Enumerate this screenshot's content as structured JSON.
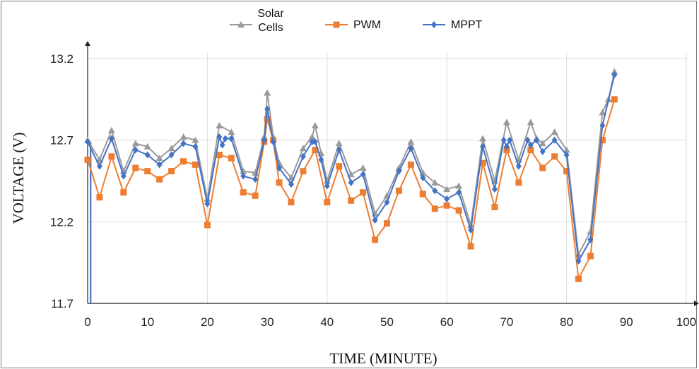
{
  "chart_data": {
    "type": "line",
    "xlabel": "TIME (MINUTE)",
    "ylabel": "VOLTAGE (V)",
    "xlim": [
      0,
      100
    ],
    "ylim": [
      11.7,
      13.2
    ],
    "xticks": [
      "0",
      "10",
      "20",
      "30",
      "40",
      "50",
      "60",
      "70",
      "80",
      "90",
      "100"
    ],
    "yticks": [
      "11.7",
      "12.2",
      "12.7",
      "13.2"
    ],
    "grid": true,
    "legend_position": "top",
    "series": [
      {
        "name": "Solar Cells",
        "color": "#9a9a9a",
        "marker": "triangle",
        "points": [
          [
            0,
            12.7
          ],
          [
            2,
            12.58
          ],
          [
            4,
            12.76
          ],
          [
            6,
            12.51
          ],
          [
            8,
            12.68
          ],
          [
            10,
            12.66
          ],
          [
            12,
            12.59
          ],
          [
            14,
            12.65
          ],
          [
            16,
            12.72
          ],
          [
            18,
            12.7
          ],
          [
            20,
            12.34
          ],
          [
            22,
            12.79
          ],
          [
            24,
            12.75
          ],
          [
            26,
            12.51
          ],
          [
            28,
            12.5
          ],
          [
            29.5,
            12.72
          ],
          [
            30,
            12.99
          ],
          [
            31,
            12.72
          ],
          [
            32,
            12.56
          ],
          [
            34,
            12.47
          ],
          [
            36,
            12.65
          ],
          [
            37.5,
            12.72
          ],
          [
            38,
            12.79
          ],
          [
            39,
            12.62
          ],
          [
            40,
            12.45
          ],
          [
            42,
            12.68
          ],
          [
            44,
            12.49
          ],
          [
            46,
            12.53
          ],
          [
            48,
            12.25
          ],
          [
            50,
            12.36
          ],
          [
            52,
            12.53
          ],
          [
            54,
            12.69
          ],
          [
            56,
            12.5
          ],
          [
            58,
            12.44
          ],
          [
            60,
            12.4
          ],
          [
            62,
            12.42
          ],
          [
            64,
            12.18
          ],
          [
            66,
            12.71
          ],
          [
            68,
            12.45
          ],
          [
            70,
            12.81
          ],
          [
            72,
            12.58
          ],
          [
            74,
            12.81
          ],
          [
            75,
            12.71
          ],
          [
            76,
            12.68
          ],
          [
            78,
            12.75
          ],
          [
            80,
            12.64
          ],
          [
            82,
            12.0
          ],
          [
            84,
            12.14
          ],
          [
            86,
            12.87
          ],
          [
            87,
            12.95
          ],
          [
            88,
            13.12
          ]
        ]
      },
      {
        "name": "PWM",
        "color": "#ed7d31",
        "marker": "square",
        "points": [
          [
            0,
            12.58
          ],
          [
            2,
            12.35
          ],
          [
            4,
            12.6
          ],
          [
            6,
            12.38
          ],
          [
            8,
            12.53
          ],
          [
            10,
            12.51
          ],
          [
            12,
            12.46
          ],
          [
            14,
            12.51
          ],
          [
            16,
            12.57
          ],
          [
            18,
            12.55
          ],
          [
            20,
            12.18
          ],
          [
            22,
            12.61
          ],
          [
            24,
            12.59
          ],
          [
            26,
            12.38
          ],
          [
            28,
            12.36
          ],
          [
            29.5,
            12.69
          ],
          [
            30,
            12.83
          ],
          [
            31,
            12.7
          ],
          [
            32,
            12.44
          ],
          [
            34,
            12.32
          ],
          [
            36,
            12.51
          ],
          [
            38,
            12.64
          ],
          [
            40,
            12.32
          ],
          [
            42,
            12.54
          ],
          [
            44,
            12.33
          ],
          [
            46,
            12.38
          ],
          [
            48,
            12.09
          ],
          [
            50,
            12.19
          ],
          [
            52,
            12.39
          ],
          [
            54,
            12.55
          ],
          [
            56,
            12.37
          ],
          [
            58,
            12.28
          ],
          [
            60,
            12.3
          ],
          [
            62,
            12.27
          ],
          [
            64,
            12.05
          ],
          [
            66,
            12.56
          ],
          [
            68,
            12.29
          ],
          [
            70,
            12.64
          ],
          [
            72,
            12.44
          ],
          [
            74,
            12.64
          ],
          [
            76,
            12.53
          ],
          [
            78,
            12.6
          ],
          [
            80,
            12.51
          ],
          [
            82,
            11.85
          ],
          [
            84,
            11.99
          ],
          [
            86,
            12.7
          ],
          [
            88,
            12.95
          ]
        ]
      },
      {
        "name": "MPPT",
        "color": "#4472c4",
        "marker": "diamond",
        "points": [
          [
            0,
            12.69
          ],
          [
            2,
            12.54
          ],
          [
            4,
            12.71
          ],
          [
            6,
            12.48
          ],
          [
            8,
            12.64
          ],
          [
            10,
            12.61
          ],
          [
            12,
            12.55
          ],
          [
            14,
            12.61
          ],
          [
            16,
            12.68
          ],
          [
            18,
            12.66
          ],
          [
            20,
            12.31
          ],
          [
            22,
            12.72
          ],
          [
            22.5,
            12.67
          ],
          [
            23,
            12.71
          ],
          [
            24,
            12.71
          ],
          [
            26,
            12.48
          ],
          [
            28,
            12.46
          ],
          [
            29.5,
            12.7
          ],
          [
            30,
            12.89
          ],
          [
            31,
            12.69
          ],
          [
            32,
            12.53
          ],
          [
            34,
            12.43
          ],
          [
            36,
            12.6
          ],
          [
            37.5,
            12.69
          ],
          [
            38,
            12.69
          ],
          [
            39,
            12.58
          ],
          [
            40,
            12.42
          ],
          [
            42,
            12.64
          ],
          [
            44,
            12.44
          ],
          [
            46,
            12.49
          ],
          [
            48,
            12.21
          ],
          [
            50,
            12.32
          ],
          [
            52,
            12.51
          ],
          [
            54,
            12.65
          ],
          [
            56,
            12.47
          ],
          [
            58,
            12.39
          ],
          [
            60,
            12.34
          ],
          [
            62,
            12.38
          ],
          [
            64,
            12.15
          ],
          [
            66,
            12.66
          ],
          [
            68,
            12.4
          ],
          [
            69.5,
            12.7
          ],
          [
            70,
            12.66
          ],
          [
            70.5,
            12.7
          ],
          [
            72,
            12.54
          ],
          [
            73.5,
            12.7
          ],
          [
            74,
            12.67
          ],
          [
            75,
            12.7
          ],
          [
            76,
            12.63
          ],
          [
            78,
            12.7
          ],
          [
            80,
            12.61
          ],
          [
            82,
            11.96
          ],
          [
            84,
            12.09
          ],
          [
            86,
            12.79
          ],
          [
            88,
            13.1
          ]
        ]
      }
    ],
    "annotations": [
      {
        "type": "drop-line",
        "series": "MPPT",
        "from": [
          0.5,
          12.69
        ],
        "to": [
          0.5,
          11.7
        ]
      }
    ]
  }
}
